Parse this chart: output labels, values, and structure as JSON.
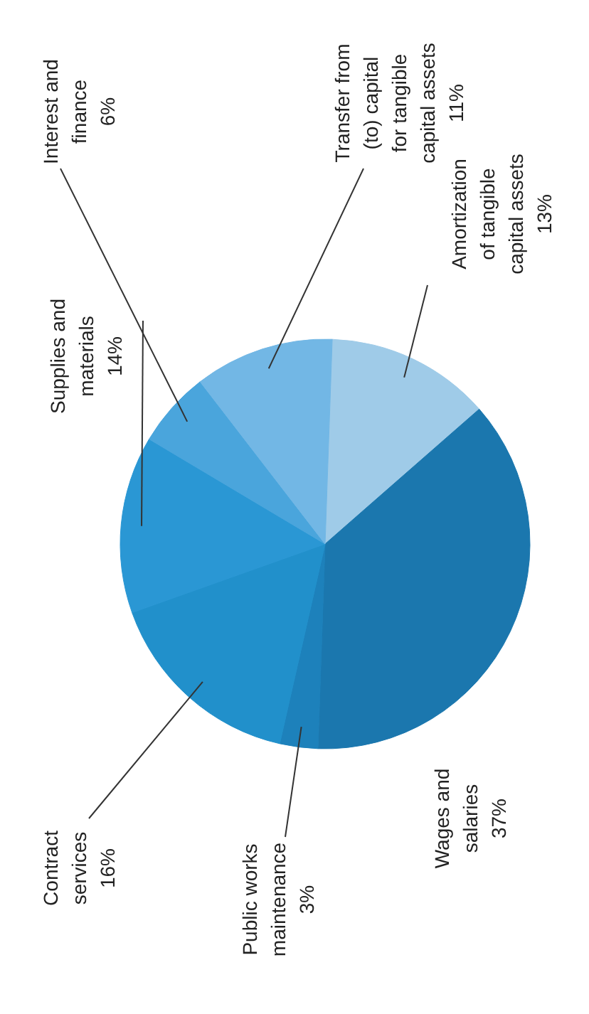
{
  "chart_data": {
    "type": "pie",
    "categories": [
      "Amortization of tangible capital assets",
      "Wages and salaries",
      "Public works maintenance",
      "Contract services",
      "Supplies and materials",
      "Interest and finance",
      "Transfer from (to) capital for tangible capital assets"
    ],
    "values": [
      13,
      37,
      3,
      16,
      14,
      6,
      11
    ],
    "value_labels": [
      "13%",
      "37%",
      "3%",
      "16%",
      "14%",
      "6%",
      "11%"
    ],
    "colors": [
      "#9fcbe8",
      "#1b77ae",
      "#1d81bb",
      "#2190cb",
      "#2a97d4",
      "#4aa5dc",
      "#72b7e5"
    ]
  }
}
